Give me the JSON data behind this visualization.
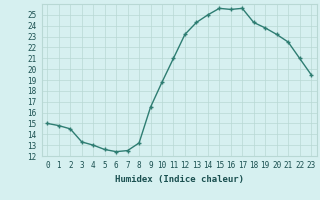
{
  "xlabel": "Humidex (Indice chaleur)",
  "x": [
    0,
    1,
    2,
    3,
    4,
    5,
    6,
    7,
    8,
    9,
    10,
    11,
    12,
    13,
    14,
    15,
    16,
    17,
    18,
    19,
    20,
    21,
    22,
    23
  ],
  "y": [
    15,
    14.8,
    14.5,
    13.3,
    13.0,
    12.6,
    12.4,
    12.5,
    13.2,
    16.5,
    18.8,
    21.0,
    23.2,
    24.3,
    25.0,
    25.6,
    25.5,
    25.6,
    24.3,
    23.8,
    23.2,
    22.5,
    21.0,
    19.5
  ],
  "line_color": "#2e7d72",
  "bg_color": "#d6f0f0",
  "grid_color": "#b8d8d4",
  "tick_label_color": "#1a5050",
  "ylim": [
    12,
    26
  ],
  "xlim": [
    -0.5,
    23.5
  ],
  "yticks": [
    12,
    13,
    14,
    15,
    16,
    17,
    18,
    19,
    20,
    21,
    22,
    23,
    24,
    25
  ],
  "xticks": [
    0,
    1,
    2,
    3,
    4,
    5,
    6,
    7,
    8,
    9,
    10,
    11,
    12,
    13,
    14,
    15,
    16,
    17,
    18,
    19,
    20,
    21,
    22,
    23
  ],
  "xtick_labels": [
    "0",
    "1",
    "2",
    "3",
    "4",
    "5",
    "6",
    "7",
    "8",
    "9",
    "10",
    "11",
    "12",
    "13",
    "14",
    "15",
    "16",
    "17",
    "18",
    "19",
    "20",
    "21",
    "22",
    "23"
  ],
  "marker": "+",
  "marker_size": 3.5,
  "line_width": 1.0,
  "xlabel_fontsize": 6.5,
  "tick_fontsize": 5.5
}
